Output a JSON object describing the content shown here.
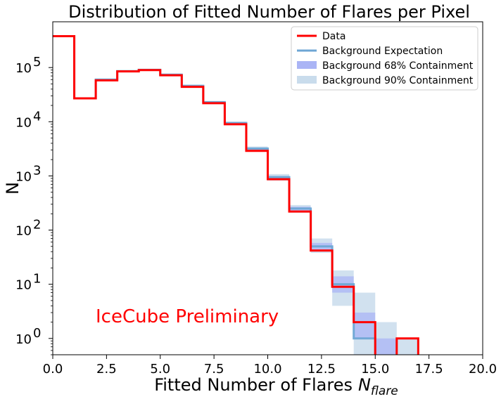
{
  "chart_data": {
    "type": "line",
    "title": "Distribution of Fitted Number of Flares per Pixel",
    "xlabel": "Fitted Number of Flares",
    "xlabel_symbol": "N",
    "xlabel_subscript": "flare",
    "ylabel": "N",
    "xlim": [
      0,
      20
    ],
    "ylim": [
      0.5,
      700000
    ],
    "yscale": "log",
    "x_ticks": [
      0.0,
      2.5,
      5.0,
      7.5,
      10.0,
      12.5,
      15.0,
      17.5,
      20.0
    ],
    "x_tick_labels": [
      "0.0",
      "2.5",
      "5.0",
      "7.5",
      "10.0",
      "12.5",
      "15.0",
      "17.5",
      "20.0"
    ],
    "y_ticks": [
      1,
      10,
      100,
      1000,
      10000,
      100000
    ],
    "y_tick_labels": [
      {
        "base": "10",
        "exp": "0"
      },
      {
        "base": "10",
        "exp": "1"
      },
      {
        "base": "10",
        "exp": "2"
      },
      {
        "base": "10",
        "exp": "3"
      },
      {
        "base": "10",
        "exp": "4"
      },
      {
        "base": "10",
        "exp": "5"
      }
    ],
    "bin_edges": [
      0,
      1,
      2,
      3,
      4,
      5,
      6,
      7,
      8,
      9,
      10,
      11,
      12,
      13,
      14,
      15,
      16,
      17,
      18,
      19,
      20
    ],
    "series": [
      {
        "name": "Data",
        "kind": "step",
        "color": "#ff0000",
        "values": [
          380000,
          27000,
          58000,
          85000,
          90000,
          72000,
          44000,
          22000,
          9000,
          2900,
          870,
          220,
          42,
          9,
          2,
          0,
          1,
          0,
          0,
          0
        ]
      },
      {
        "name": "Background Expectation",
        "kind": "step",
        "color": "#6ea6d4",
        "values": [
          380000,
          27000,
          60000,
          86000,
          91000,
          74000,
          46000,
          23000,
          9500,
          3200,
          950,
          250,
          50,
          10,
          1,
          0,
          0,
          0,
          0,
          0
        ]
      },
      {
        "name": "Background 68% Containment",
        "kind": "band",
        "color": "#aab4f5",
        "low": [
          370000,
          26500,
          58000,
          84000,
          89000,
          72000,
          45000,
          22500,
          9200,
          3000,
          880,
          225,
          42,
          7,
          1,
          0.5,
          0,
          0,
          0,
          0
        ],
        "high": [
          390000,
          27500,
          61000,
          88000,
          93000,
          76000,
          47000,
          23500,
          9800,
          3350,
          1000,
          270,
          58,
          14,
          3,
          1,
          0,
          0,
          0,
          0
        ]
      },
      {
        "name": "Background 90% Containment",
        "kind": "band",
        "color": "#c9dcec",
        "low": [
          365000,
          26000,
          57000,
          83000,
          88000,
          71000,
          44500,
          22000,
          9000,
          2850,
          820,
          210,
          38,
          4,
          0.5,
          0.5,
          0.5,
          0,
          0,
          0
        ],
        "high": [
          395000,
          28000,
          62000,
          89000,
          94000,
          77000,
          48000,
          24000,
          10000,
          3500,
          1080,
          290,
          70,
          18,
          7,
          2,
          1,
          0,
          0,
          0
        ]
      }
    ],
    "legend_position": "top-right",
    "annotation": {
      "text": "IceCube Preliminary",
      "color": "#ff0000"
    }
  }
}
